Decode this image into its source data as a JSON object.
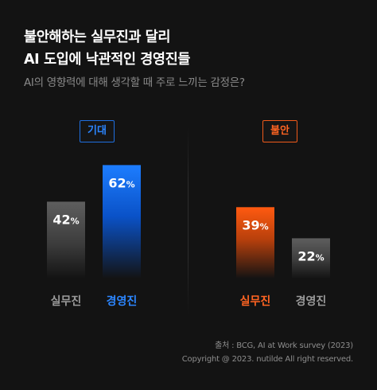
{
  "title": [
    "불안해하는 실무진과 달리",
    "AI 도입에 낙관적인 경영진들"
  ],
  "subtitle": "AI의 영향력에 대해 생각할 때 주로 느끼는 감정은?",
  "colors": {
    "expect_accent": "#2c86ff",
    "anxiety_accent": "#ff6422",
    "gray_bar": "#5e5e5e",
    "gray_label": "#9a9a9a"
  },
  "chart_data": {
    "type": "bar",
    "unit": "%",
    "groups": [
      {
        "name": "기대",
        "categories": [
          "실무진",
          "경영진"
        ],
        "values": [
          42,
          62
        ],
        "highlight": "경영진"
      },
      {
        "name": "불안",
        "categories": [
          "실무진",
          "경영진"
        ],
        "values": [
          39,
          22
        ],
        "highlight": "실무진"
      }
    ]
  },
  "source": [
    "출처 : BCG, AI at Work survey (2023)",
    "Copyright @ 2023. nutilde All right reserved."
  ]
}
